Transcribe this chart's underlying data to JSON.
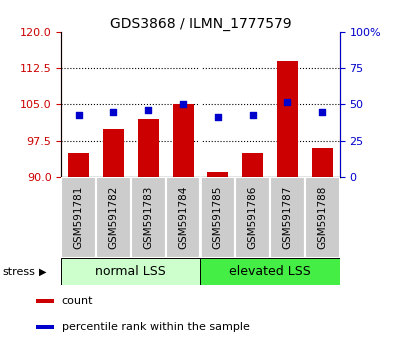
{
  "title": "GDS3868 / ILMN_1777579",
  "samples": [
    "GSM591781",
    "GSM591782",
    "GSM591783",
    "GSM591784",
    "GSM591785",
    "GSM591786",
    "GSM591787",
    "GSM591788"
  ],
  "counts": [
    95,
    100,
    102,
    105,
    91,
    95,
    114,
    96
  ],
  "percentiles": [
    43,
    45,
    46,
    50,
    41,
    43,
    52,
    45
  ],
  "ylim_left": [
    90,
    120
  ],
  "ylim_right": [
    0,
    100
  ],
  "yticks_left": [
    90,
    97.5,
    105,
    112.5,
    120
  ],
  "yticks_right": [
    0,
    25,
    50,
    75,
    100
  ],
  "bar_color": "#cc0000",
  "dot_color": "#0000cc",
  "group_normal_color": "#ccffcc",
  "group_elevated_color": "#44ee44",
  "groups": [
    {
      "label": "normal LSS",
      "start": 0,
      "end": 4,
      "color": "#ccffcc"
    },
    {
      "label": "elevated LSS",
      "start": 4,
      "end": 8,
      "color": "#44ee44"
    }
  ],
  "stress_label": "stress",
  "legend_items": [
    {
      "color": "#cc0000",
      "label": "count"
    },
    {
      "color": "#0000cc",
      "label": "percentile rank within the sample"
    }
  ],
  "bar_width": 0.6,
  "left_tick_color": "#cc0000",
  "right_tick_color": "#0000cc",
  "tick_label_bg": "#cccccc",
  "tick_label_fontsize": 7.5,
  "group_label_fontsize": 9,
  "legend_fontsize": 8,
  "title_fontsize": 10
}
